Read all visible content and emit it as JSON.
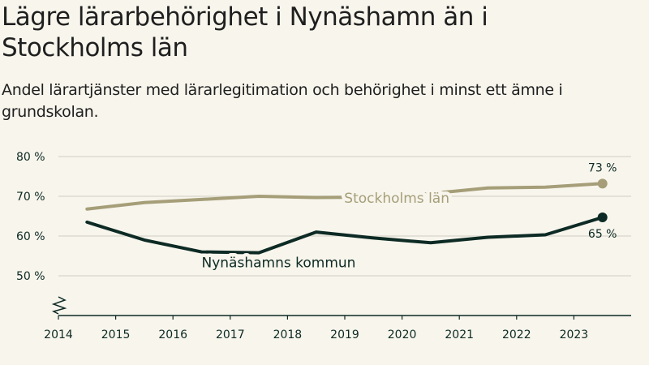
{
  "title": "Lägre lärarbehörighet i Nynäshamn än i Stockholms län",
  "subtitle": "Andel lärartjänster med lärarlegitimation och behörighet i minst ett ämne i grundskolan.",
  "colors": {
    "stockholm": "#a59e78",
    "nynashamn": "#0d2a24",
    "grid": "#d8d6cc",
    "axis": "#0d2a24",
    "background": "#f7f5ec"
  },
  "chart_data": {
    "type": "line",
    "title": "Lägre lärarbehörighet i Nynäshamn än i Stockholms län",
    "subtitle": "Andel lärartjänster med lärarlegitimation och behörighet i minst ett ämne i grundskolan.",
    "xlabel": "",
    "ylabel": "",
    "x_ticks": [
      "2014",
      "2015",
      "2016",
      "2017",
      "2018",
      "2019",
      "2020",
      "2021",
      "2022",
      "2023"
    ],
    "x_range": [
      2014,
      2024
    ],
    "y_ticks": [
      {
        "value": 50,
        "label": "50 %"
      },
      {
        "value": 60,
        "label": "60 %"
      },
      {
        "value": 70,
        "label": "70 %"
      },
      {
        "value": 80,
        "label": "80 %"
      }
    ],
    "ylim": [
      40,
      80
    ],
    "axis_break": true,
    "grid": true,
    "series": [
      {
        "name": "Stockholms län",
        "color_key": "stockholm",
        "x": [
          2014.5,
          2015.5,
          2016.5,
          2017.5,
          2018.5,
          2019.5,
          2020.5,
          2021.5,
          2022.5,
          2023.5
        ],
        "values": [
          66.8,
          68.4,
          69.2,
          70.0,
          69.7,
          69.8,
          70.7,
          72.1,
          72.3,
          73.2
        ],
        "end_label": "73 %",
        "label_anchor_index": 5
      },
      {
        "name": "Nynäshamns kommun",
        "color_key": "nynashamn",
        "x": [
          2014.5,
          2015.5,
          2016.5,
          2017.5,
          2018.5,
          2019.5,
          2020.5,
          2021.5,
          2022.5,
          2023.5
        ],
        "values": [
          63.5,
          59.0,
          56.0,
          55.8,
          61.0,
          59.5,
          58.3,
          59.7,
          60.3,
          64.7
        ],
        "end_label": "65 %",
        "label_anchor_index": 2
      }
    ]
  }
}
